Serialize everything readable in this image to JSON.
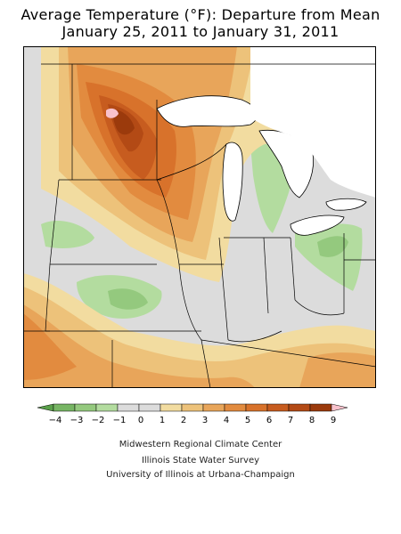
{
  "title": {
    "line1": "Average Temperature (°F): Departure from Mean",
    "line2": "January 25, 2011 to January 31, 2011"
  },
  "legend": {
    "items": [
      {
        "label": "-4",
        "color": "#77b564"
      },
      {
        "label": "-3",
        "color": "#94c97e"
      },
      {
        "label": "-2",
        "color": "#b3dc9f"
      },
      {
        "label": "-1",
        "color": "#dcdcdc"
      },
      {
        "label": "0",
        "color": "#dcdcdc"
      },
      {
        "label": "1",
        "color": "#f2dca0"
      },
      {
        "label": "2",
        "color": "#edc27a"
      },
      {
        "label": "3",
        "color": "#e8a55a"
      },
      {
        "label": "4",
        "color": "#e28b3f"
      },
      {
        "label": "5",
        "color": "#d8722b"
      },
      {
        "label": "6",
        "color": "#c75c1f"
      },
      {
        "label": "7",
        "color": "#b34a15"
      },
      {
        "label": "8",
        "color": "#9b3a0c"
      },
      {
        "label": "9",
        "color": "#f8c2cc"
      }
    ],
    "low_end_color": "#5aa04a",
    "high_end_color": "#f8c2cc"
  },
  "credits": {
    "line1": "Midwestern Regional Climate Center",
    "line2": "Illinois State Water Survey",
    "line3": "University of Illinois at Urbana-Champaign"
  },
  "colors": {
    "neutral": "#dcdcdc",
    "lake": "#ffffff",
    "border": "#000000"
  }
}
